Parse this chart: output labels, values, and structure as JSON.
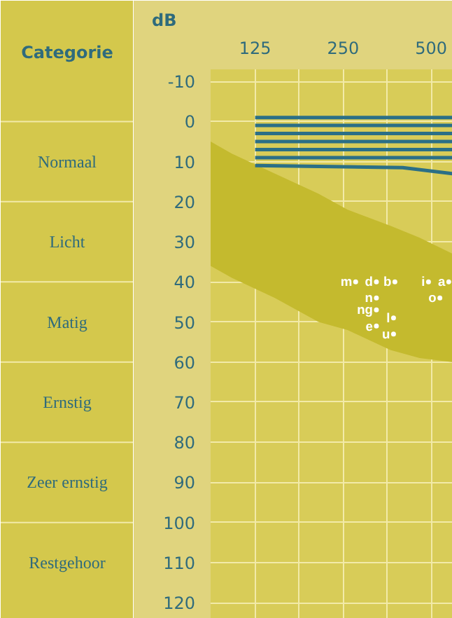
{
  "chart_data": {
    "type": "line",
    "ylabel": "dB",
    "annotations": [
      "Categorie",
      "Normaal",
      "Licht",
      "Matig",
      "Ernstig",
      "Zeer ernstig",
      "Restgehoor"
    ],
    "log": "x",
    "xlim": [
      88,
      593
    ],
    "ylim": [
      124,
      -13
    ],
    "xticks": [
      {
        "value": 88,
        "label": null
      },
      125,
      {
        "value": 177,
        "label": null
      },
      250,
      {
        "value": 354,
        "label": null
      },
      500
    ],
    "yticks": [
      -10,
      0,
      10,
      20,
      30,
      40,
      50,
      60,
      70,
      80,
      90,
      100,
      110,
      120
    ],
    "grid": true,
    "marker": "none",
    "line_style": "solid",
    "series": [
      {
        "type": "area",
        "color": "#c4ba2e",
        "x": [
          88,
          104,
          146,
          206,
          259,
          363,
          457,
          593
        ],
        "values": [
          null,
          null,
          null,
          null,
          null,
          null,
          null,
          null
        ],
        "lower": [
          36,
          39,
          44,
          50,
          52,
          57,
          59,
          60
        ],
        "upper": [
          5,
          8,
          13,
          18,
          22,
          26,
          29,
          33
        ]
      },
      {
        "color": "#2b6f86",
        "x": [
          125,
          593
        ],
        "values": [
          -1,
          -1
        ]
      },
      {
        "color": "#2b6f86",
        "x": [
          125,
          593
        ],
        "values": [
          1,
          1
        ]
      },
      {
        "color": "#2b6f86",
        "x": [
          125,
          593
        ],
        "values": [
          3,
          3
        ]
      },
      {
        "color": "#2b6f86",
        "x": [
          125,
          593
        ],
        "values": [
          5,
          5
        ]
      },
      {
        "color": "#2b6f86",
        "x": [
          125,
          593
        ],
        "values": [
          7,
          7
        ]
      },
      {
        "color": "#2b6f86",
        "x": [
          125,
          593
        ],
        "values": [
          9,
          9
        ]
      },
      {
        "color": "#2b6f86",
        "x": [
          125,
          400,
          593
        ],
        "values": [
          11,
          11.5,
          13
        ]
      },
      {
        "type": "scatter",
        "marker": "circle",
        "color": "#ffffff",
        "x": [
          276,
          325,
          376,
          325,
          325,
          325,
          372,
          372,
          490,
          575,
          536
        ],
        "values": [
          40,
          40,
          40,
          44,
          47,
          51,
          49,
          53,
          40,
          40,
          44
        ],
        "value_labels": [
          "m",
          "d",
          "b",
          "n",
          "ng",
          "e",
          "l",
          "u",
          "i",
          "a",
          "o"
        ]
      }
    ]
  }
}
